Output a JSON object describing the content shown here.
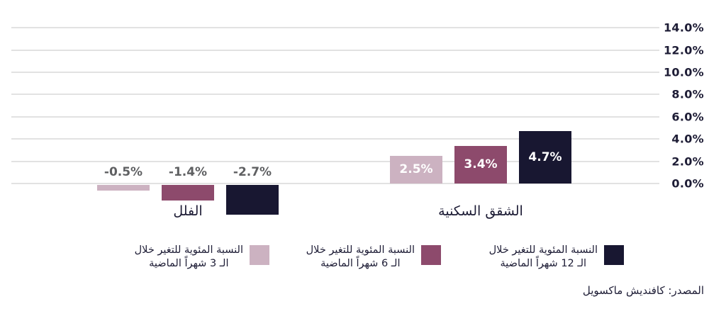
{
  "chart_data": {
    "type": "bar",
    "categories": [
      "الفلل",
      "الشقق السكنية"
    ],
    "series": [
      {
        "name": "النسبة المئوية للتغير خلال الـ 3 شهراً الماضية",
        "color": "#ccb2c1",
        "values": [
          -0.5,
          2.5
        ],
        "labels": [
          "-0.5%",
          "2.5%"
        ]
      },
      {
        "name": "النسبة المئوية للتغير خلال الـ 6 شهراً الماضية",
        "color": "#8d4a6c",
        "values": [
          -1.4,
          3.4
        ],
        "labels": [
          "-1.4%",
          "3.4%"
        ]
      },
      {
        "name": "النسبة المئوية للتغير خلال الـ 12 شهراً الماضية",
        "color": "#181731",
        "values": [
          -2.7,
          4.7
        ],
        "labels": [
          "-2.7%",
          "4.7%"
        ]
      }
    ],
    "yticks": [
      {
        "value": 0,
        "label": "0.0%"
      },
      {
        "value": 2,
        "label": "2.0%"
      },
      {
        "value": 4,
        "label": "4.0%"
      },
      {
        "value": 6,
        "label": "6.0%"
      },
      {
        "value": 8,
        "label": "8.0%"
      },
      {
        "value": 10,
        "label": "10.0%"
      },
      {
        "value": 12,
        "label": "12.0%"
      },
      {
        "value": 14,
        "label": "14.0%"
      }
    ],
    "ylim": [
      -3.2,
      14
    ],
    "grid": true,
    "axis_side": "right",
    "legend_position": "bottom",
    "direction": "rtl",
    "title": "",
    "xlabel": "",
    "ylabel": ""
  },
  "legend": {
    "items": [
      {
        "line1": "النسبة المئوية للتغير خلال",
        "line2": "الـ 12 شهراً الماضية",
        "color": "#181731"
      },
      {
        "line1": "النسبة المئوية للتغير خلال",
        "line2": "الـ 6 شهراً الماضية",
        "color": "#8d4a6c"
      },
      {
        "line1": "النسبة المئوية للتغير خلال",
        "line2": "الـ 3 شهراً الماضية",
        "color": "#ccb2c1"
      }
    ]
  },
  "source": {
    "text": "المصدر: كافنديش ماكسويل"
  },
  "colors": {
    "background": "#ffffff",
    "gridline": "#e2e2e2",
    "axis_text": "#1d1c35",
    "negative_value_label": "#5f6062",
    "positive_value_label": "#ffffff",
    "category_text": "#1d1c35"
  }
}
